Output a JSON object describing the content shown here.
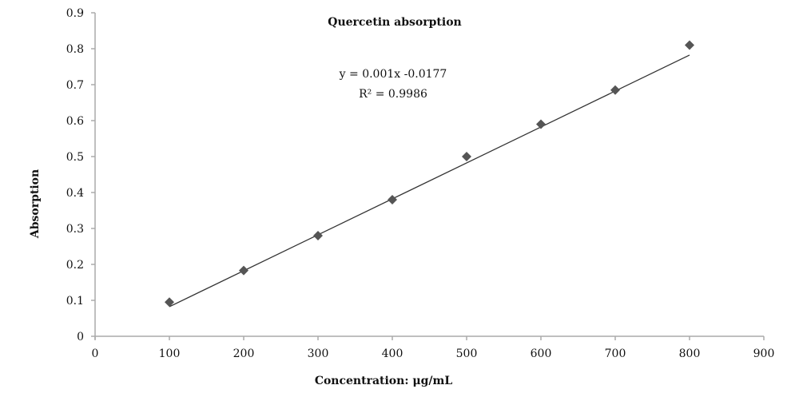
{
  "chart_data": {
    "type": "scatter",
    "title": "Quercetin absorption",
    "xlabel": "Concentration: μg/mL",
    "ylabel": "Absorption",
    "xlim": [
      0,
      900
    ],
    "ylim": [
      0,
      0.9
    ],
    "xticks": [
      0,
      100,
      200,
      300,
      400,
      500,
      600,
      700,
      800,
      900
    ],
    "yticks": [
      0,
      0.1,
      0.2,
      0.3,
      0.4,
      0.5,
      0.6,
      0.7,
      0.8,
      0.9
    ],
    "grid": false,
    "marker": "diamond",
    "marker_color": "#555555",
    "line_color": "#333333",
    "axis_color": "#aaaaaa",
    "x": [
      100,
      200,
      300,
      400,
      500,
      600,
      700,
      800
    ],
    "y": [
      0.095,
      0.183,
      0.28,
      0.38,
      0.5,
      0.59,
      0.685,
      0.81
    ],
    "trendline": {
      "type": "linear",
      "slope": 0.001,
      "intercept": -0.0177,
      "x_range": [
        100,
        800
      ]
    },
    "annotations": {
      "equation": "y = 0.001x -0.0177",
      "r2": "R² = 0.9986"
    }
  }
}
